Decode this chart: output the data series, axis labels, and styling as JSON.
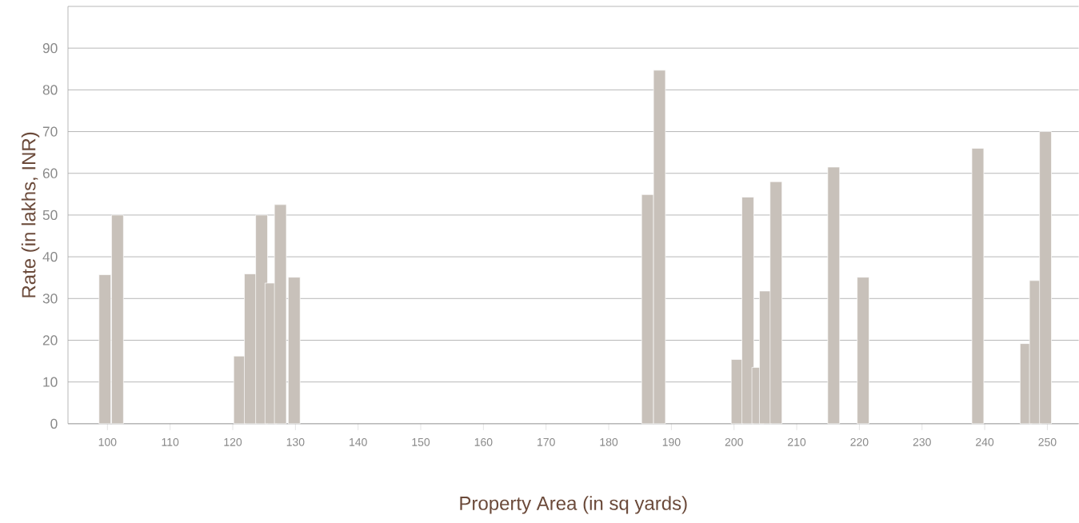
{
  "chart_data": {
    "type": "bar",
    "xlabel": "Property Area (in sq yards)",
    "ylabel": "Rate (in lakhs, INR)",
    "x": [
      99.6,
      101.6,
      121.1,
      122.8,
      124.6,
      126.1,
      127.6,
      129.8,
      186.2,
      188.1,
      200.5,
      202.2,
      203.8,
      205.0,
      206.7,
      215.9,
      220.6,
      238.9,
      246.6,
      248.1,
      249.7
    ],
    "values": [
      35.7,
      50,
      16.2,
      35.9,
      50,
      33.7,
      52.5,
      35.1,
      54.9,
      84.7,
      15.4,
      54.3,
      13.5,
      31.8,
      58.0,
      61.5,
      35.1,
      66.0,
      19.2,
      34.3,
      70.0
    ],
    "color": "#c8c1ba",
    "xlim": [
      93.7,
      255
    ],
    "ylim": [
      0,
      100
    ],
    "xticks": [
      100,
      110,
      120,
      130,
      140,
      150,
      160,
      170,
      180,
      190,
      200,
      210,
      220,
      230,
      240,
      250
    ],
    "yticks": [
      0,
      10,
      20,
      30,
      40,
      50,
      60,
      70,
      80,
      90
    ],
    "grid": "y"
  }
}
